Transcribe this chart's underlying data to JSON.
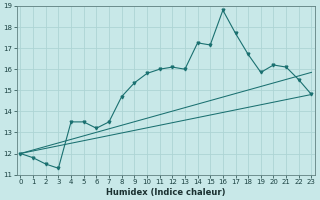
{
  "title": "",
  "xlabel": "Humidex (Indice chaleur)",
  "ylabel": "",
  "bg_color": "#c8e8e8",
  "grid_color": "#add4d4",
  "line_color": "#1a7070",
  "x": [
    0,
    1,
    2,
    3,
    4,
    5,
    6,
    7,
    8,
    9,
    10,
    11,
    12,
    13,
    14,
    15,
    16,
    17,
    18,
    19,
    20,
    21,
    22,
    23
  ],
  "y_main": [
    12.0,
    11.8,
    11.5,
    11.3,
    13.5,
    13.5,
    13.2,
    13.5,
    14.7,
    15.35,
    15.8,
    16.0,
    16.1,
    16.0,
    17.25,
    17.15,
    18.8,
    17.7,
    16.7,
    15.85,
    16.2,
    16.1,
    15.5,
    14.8
  ],
  "y_line1_start": 12.0,
  "y_line1_end": 15.85,
  "y_line2_start": 12.0,
  "y_line2_end": 14.8,
  "ylim": [
    11.0,
    19.0
  ],
  "xlim": [
    -0.3,
    23.3
  ],
  "yticks": [
    11,
    12,
    13,
    14,
    15,
    16,
    17,
    18,
    19
  ],
  "xticks": [
    0,
    1,
    2,
    3,
    4,
    5,
    6,
    7,
    8,
    9,
    10,
    11,
    12,
    13,
    14,
    15,
    16,
    17,
    18,
    19,
    20,
    21,
    22,
    23
  ],
  "tick_fontsize": 5.0,
  "xlabel_fontsize": 6.0
}
